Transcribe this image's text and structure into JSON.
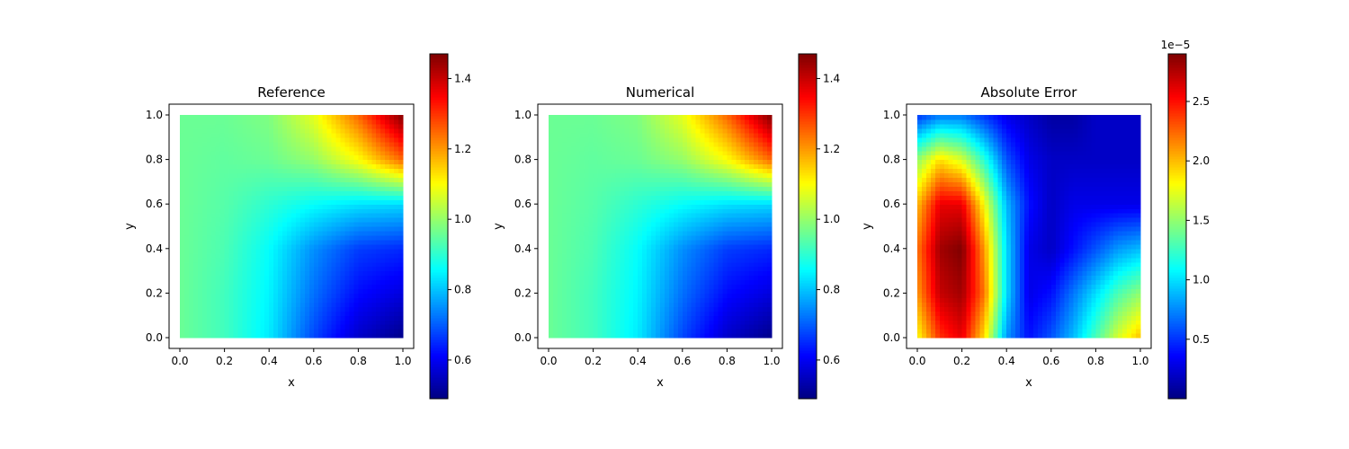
{
  "chart_data": [
    {
      "type": "heatmap",
      "title": "Reference",
      "xlabel": "x",
      "ylabel": "y",
      "xlim": [
        0,
        1
      ],
      "ylim": [
        0,
        1
      ],
      "xticks": [
        "0.0",
        "0.2",
        "0.4",
        "0.6",
        "0.8",
        "1.0"
      ],
      "yticks": [
        "0.0",
        "0.2",
        "0.4",
        "0.6",
        "0.8",
        "1.0"
      ],
      "colormap": "jet",
      "colorbar": {
        "min": 0.49,
        "max": 1.47,
        "ticks": [
          "0.6",
          "0.8",
          "1.0",
          "1.2",
          "1.4"
        ],
        "exponent_label": ""
      },
      "field": {
        "x": [
          0,
          0.2,
          0.4,
          0.6,
          0.8,
          1.0
        ],
        "y": [
          0,
          0.2,
          0.4,
          0.6,
          0.8,
          1.0
        ],
        "values": [
          [
            0.96,
            0.92,
            0.84,
            0.68,
            0.56,
            0.5
          ],
          [
            0.96,
            0.92,
            0.85,
            0.72,
            0.62,
            0.58
          ],
          [
            0.96,
            0.93,
            0.86,
            0.75,
            0.67,
            0.65
          ],
          [
            0.96,
            0.94,
            0.9,
            0.86,
            0.83,
            0.82
          ],
          [
            0.96,
            0.95,
            0.96,
            1.0,
            1.1,
            1.25
          ],
          [
            0.96,
            0.96,
            0.98,
            1.08,
            1.25,
            1.47
          ]
        ]
      }
    },
    {
      "type": "heatmap",
      "title": "Numerical",
      "xlabel": "x",
      "ylabel": "y",
      "xlim": [
        0,
        1
      ],
      "ylim": [
        0,
        1
      ],
      "xticks": [
        "0.0",
        "0.2",
        "0.4",
        "0.6",
        "0.8",
        "1.0"
      ],
      "yticks": [
        "0.0",
        "0.2",
        "0.4",
        "0.6",
        "0.8",
        "1.0"
      ],
      "colormap": "jet",
      "colorbar": {
        "min": 0.49,
        "max": 1.47,
        "ticks": [
          "0.6",
          "0.8",
          "1.0",
          "1.2",
          "1.4"
        ],
        "exponent_label": ""
      },
      "field": {
        "x": [
          0,
          0.2,
          0.4,
          0.6,
          0.8,
          1.0
        ],
        "y": [
          0,
          0.2,
          0.4,
          0.6,
          0.8,
          1.0
        ],
        "values": [
          [
            0.96,
            0.92,
            0.84,
            0.68,
            0.56,
            0.5
          ],
          [
            0.96,
            0.92,
            0.85,
            0.72,
            0.62,
            0.58
          ],
          [
            0.96,
            0.93,
            0.86,
            0.75,
            0.67,
            0.65
          ],
          [
            0.96,
            0.94,
            0.9,
            0.86,
            0.83,
            0.82
          ],
          [
            0.96,
            0.95,
            0.96,
            1.0,
            1.1,
            1.25
          ],
          [
            0.96,
            0.96,
            0.98,
            1.08,
            1.25,
            1.47
          ]
        ]
      }
    },
    {
      "type": "heatmap",
      "title": "Absolute Error",
      "xlabel": "x",
      "ylabel": "y",
      "xlim": [
        0,
        1
      ],
      "ylim": [
        0,
        1
      ],
      "xticks": [
        "0.0",
        "0.2",
        "0.4",
        "0.6",
        "0.8",
        "1.0"
      ],
      "yticks": [
        "0.0",
        "0.2",
        "0.4",
        "0.6",
        "0.8",
        "1.0"
      ],
      "colormap": "jet",
      "colorbar": {
        "min": 0.0,
        "max": 2.9,
        "ticks": [
          "0.5",
          "1.0",
          "1.5",
          "2.0",
          "2.5"
        ],
        "exponent_label": "1e−5"
      },
      "field": {
        "x": [
          0,
          0.1,
          0.2,
          0.3,
          0.4,
          0.5,
          0.6,
          0.7,
          0.8,
          0.9,
          1.0
        ],
        "y": [
          0,
          0.2,
          0.4,
          0.6,
          0.8,
          1.0
        ],
        "values": [
          [
            1.8,
            2.4,
            2.6,
            1.9,
            0.8,
            0.4,
            0.6,
            0.9,
            1.3,
            1.7,
            2.0
          ],
          [
            2.1,
            2.7,
            2.8,
            2.2,
            1.0,
            0.3,
            0.4,
            0.7,
            1.0,
            1.3,
            1.5
          ],
          [
            2.2,
            2.8,
            2.9,
            2.1,
            1.0,
            0.3,
            0.2,
            0.4,
            0.6,
            0.8,
            0.9
          ],
          [
            2.0,
            2.6,
            2.6,
            1.8,
            0.9,
            0.4,
            0.2,
            0.3,
            0.3,
            0.3,
            0.3
          ],
          [
            1.5,
            1.9,
            1.7,
            1.2,
            0.6,
            0.3,
            0.2,
            0.2,
            0.2,
            0.2,
            0.2
          ],
          [
            0.5,
            0.7,
            0.7,
            0.5,
            0.3,
            0.2,
            0.1,
            0.1,
            0.2,
            0.2,
            0.2
          ]
        ]
      }
    }
  ]
}
